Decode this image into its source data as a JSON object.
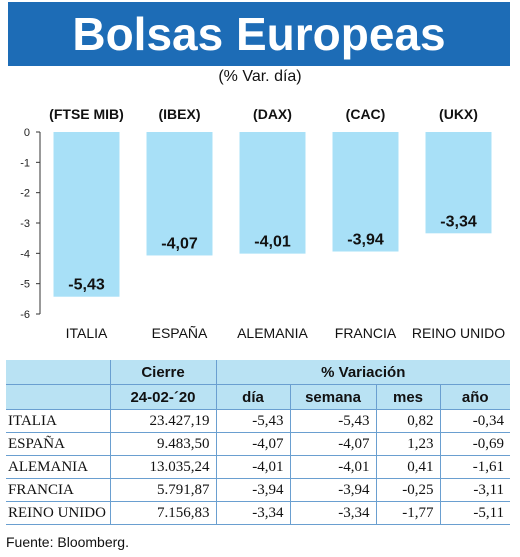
{
  "header": {
    "title": "Bolsas Europeas",
    "subtitle": "(% Var. día)"
  },
  "colors": {
    "header_bg": "#1d6cb6",
    "bar": "#a8e0f7",
    "table_header_bg": "#b9e2f3",
    "rule": "#6a9fd0"
  },
  "chart_data": {
    "type": "bar",
    "categories": [
      "ITALIA",
      "ESPAÑA",
      "ALEMANIA",
      "FRANCIA",
      "REINO UNIDO"
    ],
    "index_labels": [
      "(FTSE MIB)",
      "(IBEX)",
      "(DAX)",
      "(CAC)",
      "(UKX)"
    ],
    "values": [
      -5.43,
      -4.07,
      -4.01,
      -3.94,
      -3.34
    ],
    "value_labels": [
      "-5,43",
      "-4,07",
      "-4,01",
      "-3,94",
      "-3,34"
    ],
    "ylim": [
      -6,
      0
    ],
    "yticks": [
      0,
      -1,
      -2,
      -3,
      -4,
      -5,
      -6
    ],
    "ytick_labels": [
      "0",
      "-1",
      "-2",
      "-3",
      "-4",
      "-5",
      "-6"
    ],
    "grid": false,
    "legend": "none"
  },
  "table": {
    "header_row1": {
      "cierre": "Cierre",
      "variacion": "% Variación"
    },
    "header_row2": {
      "date": "24-02-´20",
      "dia": "día",
      "semana": "semana",
      "mes": "mes",
      "anio": "año"
    },
    "rows": [
      {
        "name": "ITALIA",
        "cierre": "23.427,19",
        "dia": "-5,43",
        "semana": "-5,43",
        "mes": "0,82",
        "anio": "-0,34"
      },
      {
        "name": "ESPAÑA",
        "cierre": "9.483,50",
        "dia": "-4,07",
        "semana": "-4,07",
        "mes": "1,23",
        "anio": "-0,69"
      },
      {
        "name": "ALEMANIA",
        "cierre": "13.035,24",
        "dia": "-4,01",
        "semana": "-4,01",
        "mes": "0,41",
        "anio": "-1,61"
      },
      {
        "name": "FRANCIA",
        "cierre": "5.791,87",
        "dia": "-3,94",
        "semana": "-3,94",
        "mes": "-0,25",
        "anio": "-3,11"
      },
      {
        "name": "REINO UNIDO",
        "cierre": "7.156,83",
        "dia": "-3,34",
        "semana": "-3,34",
        "mes": "-1,77",
        "anio": "-5,11"
      }
    ]
  },
  "source": "Fuente: Bloomberg."
}
